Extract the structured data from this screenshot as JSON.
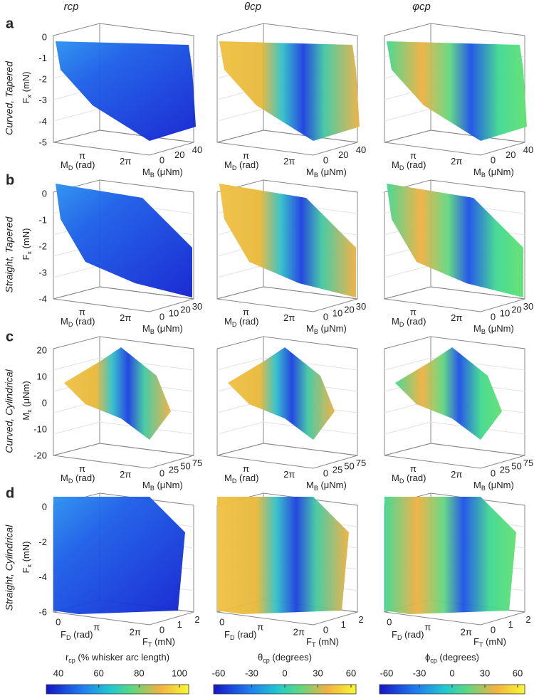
{
  "column_headers": [
    "rcp",
    "θcp",
    "φcp"
  ],
  "rows": [
    {
      "letter": "a",
      "label": "Curved, Tapered",
      "z_axis": {
        "symbol": "F",
        "sub": "x",
        "unit": " (mN)",
        "ticks": [
          "0",
          "-1",
          "-2",
          "-3",
          "-4",
          "-5"
        ]
      },
      "x_axis": {
        "symbol": "M",
        "sub": "D",
        "unit": " (rad)",
        "ticks": [
          "π",
          "2π"
        ]
      },
      "y_axis": {
        "symbol": "M",
        "sub": "B",
        "unit": " (μNm)",
        "ticks": [
          "0",
          "20",
          "40"
        ]
      }
    },
    {
      "letter": "b",
      "label": "Straight, Tapered",
      "z_axis": {
        "symbol": "F",
        "sub": "x",
        "unit": " (mN)",
        "ticks": [
          "0",
          "-1",
          "-2",
          "-3",
          "-4"
        ]
      },
      "x_axis": {
        "symbol": "M",
        "sub": "D",
        "unit": " (rad)",
        "ticks": [
          "π",
          "2π"
        ]
      },
      "y_axis": {
        "symbol": "M",
        "sub": "B",
        "unit": " (μNm)",
        "ticks": [
          "0",
          "10",
          "20",
          "30"
        ]
      }
    },
    {
      "letter": "c",
      "label": "Curved, Cylindrical",
      "z_axis": {
        "symbol": "M",
        "sub": "x",
        "unit": " (μNm)",
        "ticks": [
          "20",
          "10",
          "0",
          "-10",
          "-20"
        ]
      },
      "x_axis": {
        "symbol": "M",
        "sub": "D",
        "unit": " (rad)",
        "ticks": [
          "π",
          "2π"
        ]
      },
      "y_axis": {
        "symbol": "M",
        "sub": "B",
        "unit": " (μNm)",
        "ticks": [
          "0",
          "25",
          "50",
          "75"
        ]
      }
    },
    {
      "letter": "d",
      "label": "Straight, Cylindrical",
      "z_axis": {
        "symbol": "F",
        "sub": "x",
        "unit": " (mN)",
        "ticks": [
          "0",
          "-2",
          "-4",
          "-6"
        ]
      },
      "x_axis": {
        "symbol": "F",
        "sub": "D",
        "unit": " (rad)",
        "ticks": [
          "0",
          "π",
          "2π"
        ]
      },
      "y_axis": {
        "symbol": "F",
        "sub": "T",
        "unit": " (mN)",
        "ticks": [
          "0",
          "1",
          "2"
        ]
      }
    }
  ],
  "colorbars": [
    {
      "symbol": "r",
      "sub": "cp",
      "unit": " (% whisker arc length)",
      "ticks": [
        "40",
        "60",
        "80",
        "100"
      ]
    },
    {
      "symbol": "θ",
      "sub": "cp",
      "unit": " (degrees)",
      "ticks": [
        "-60",
        "-30",
        "0",
        "30",
        "60"
      ]
    },
    {
      "symbol": "ϕ",
      "sub": "cp",
      "unit": " (degrees)",
      "ticks": [
        "-60",
        "-30",
        "0",
        "30",
        "60"
      ]
    }
  ]
}
